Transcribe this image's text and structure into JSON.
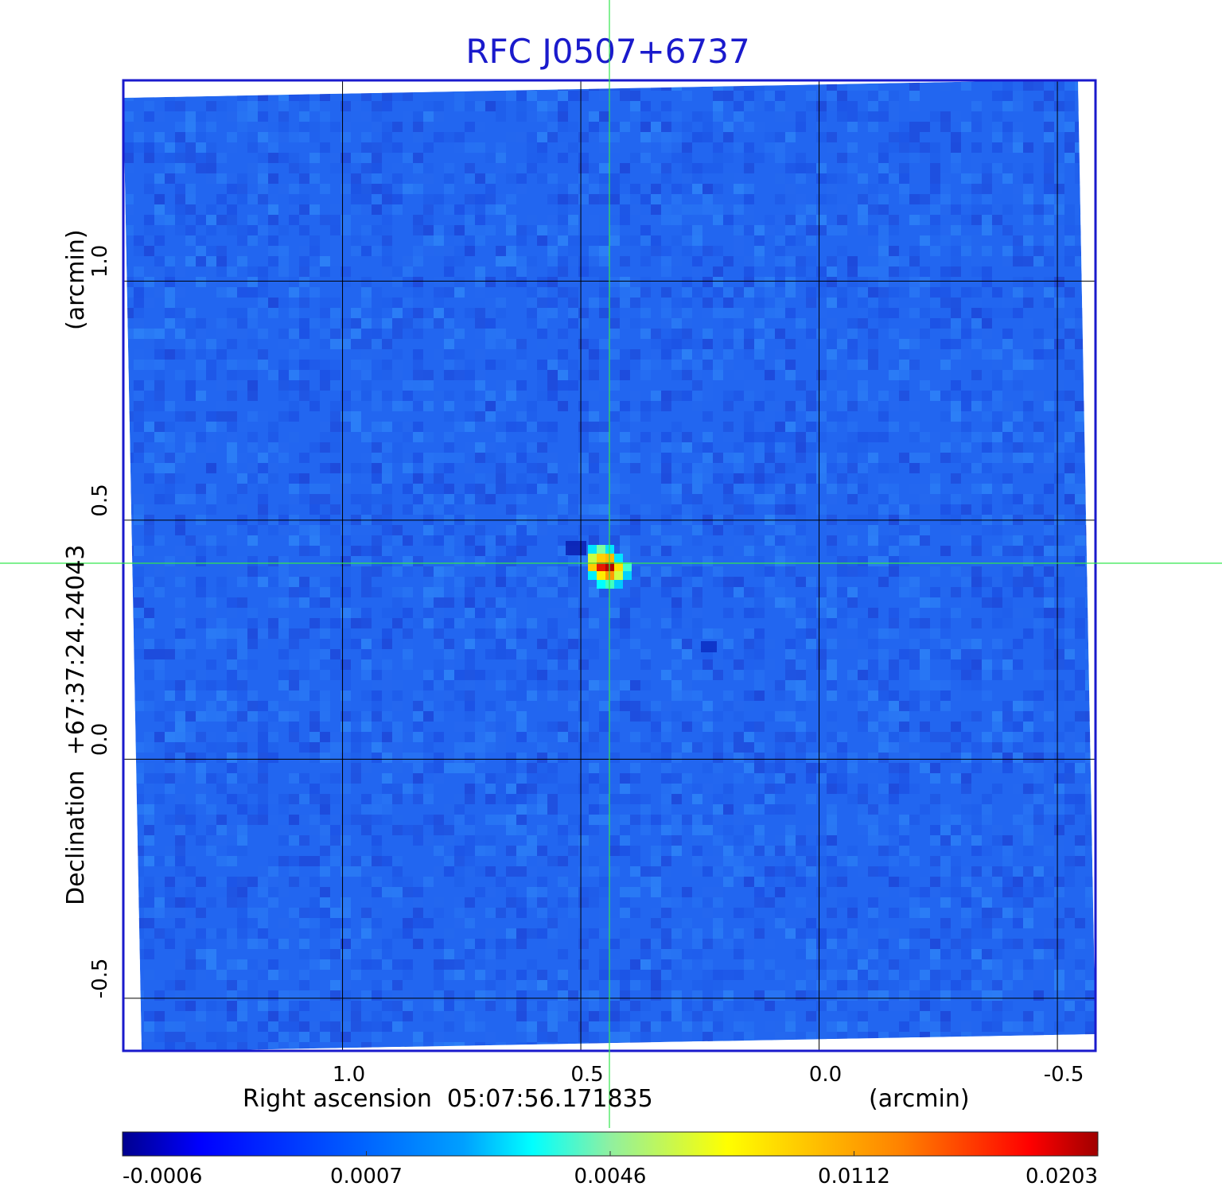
{
  "chart_data": {
    "type": "heatmap",
    "title": "RFC J0507+6737",
    "xlabel": "Right ascension  05:07:56.171835",
    "xunit": "(arcmin)",
    "ylabel": "Declination  +67:37:24.24043",
    "yunit": "(arcmin)",
    "x_ticks": [
      1.0,
      0.5,
      0.0,
      -0.5
    ],
    "x_tick_labels": [
      "1.0",
      "0.5",
      "0.0",
      "-0.5"
    ],
    "y_ticks": [
      1.0,
      0.5,
      0.0,
      -0.5
    ],
    "y_tick_labels": [
      "1.0",
      "0.5",
      "0.0",
      "-0.5"
    ],
    "xlim": [
      1.46,
      -0.58
    ],
    "ylim": [
      -0.61,
      1.42
    ],
    "grid": true,
    "crosshair": {
      "x": 0.44,
      "y": 0.41,
      "color": "#33e64d"
    },
    "source_peak": {
      "x": 0.44,
      "y": 0.41,
      "value": 0.0203
    },
    "colorbar": {
      "tick_labels": [
        "-0.0006",
        "0.0007",
        "0.0046",
        "0.0112",
        "0.0203"
      ],
      "colormap": "jet"
    },
    "colors": {
      "frame": "#1a1acc",
      "title": "#1a1acc",
      "grid": "#000000",
      "background_map": "#2266f0"
    }
  }
}
